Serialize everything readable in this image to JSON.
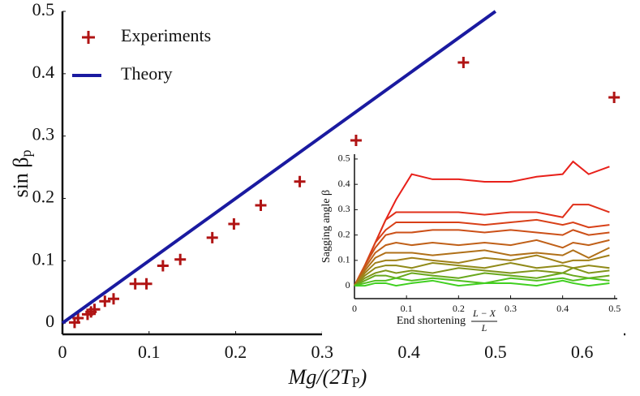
{
  "chart_data": [
    {
      "type": "scatter",
      "xlabel": [
        "Mg/(2T",
        "P",
        ")"
      ],
      "ylabel": [
        "sin β",
        "p"
      ],
      "xlim": [
        0,
        0.65
      ],
      "ylim": [
        -0.018,
        0.5
      ],
      "xticks": [
        0,
        0.1,
        0.2,
        0.3,
        0.4,
        0.5,
        0.6
      ],
      "yticks": [
        0,
        0.1,
        0.2,
        0.3,
        0.4,
        0.5
      ],
      "legend": "upper left",
      "series": [
        {
          "name": "Experiments",
          "type": "scatter",
          "color": "#b01414",
          "x": [
            0.014,
            0.018,
            0.029,
            0.033,
            0.037,
            0.049,
            0.059,
            0.084,
            0.097,
            0.116,
            0.136,
            0.173,
            0.198,
            0.229,
            0.274,
            0.339,
            0.463,
            0.637
          ],
          "values": [
            0.001,
            0.008,
            0.014,
            0.018,
            0.022,
            0.035,
            0.039,
            0.063,
            0.063,
            0.092,
            0.102,
            0.137,
            0.159,
            0.189,
            0.227,
            0.293,
            0.418,
            0.362
          ]
        },
        {
          "name": "Theory",
          "type": "line",
          "color": "#1a1aa0",
          "x": [
            0,
            0.5
          ],
          "values": [
            0,
            0.5
          ]
        }
      ]
    },
    {
      "type": "line",
      "xlabel": [
        "End shortening",
        "L − X",
        "L"
      ],
      "ylabel": "Sagging angle β",
      "xlim": [
        0,
        0.505
      ],
      "ylim": [
        -0.051,
        0.519
      ],
      "xticks": [
        0,
        0.1,
        0.2,
        0.3,
        0.4,
        0.5
      ],
      "yticks": [
        0,
        0.1,
        0.2,
        0.3,
        0.4,
        0.5
      ],
      "x": [
        0,
        0.02,
        0.04,
        0.06,
        0.08,
        0.11,
        0.15,
        0.2,
        0.25,
        0.3,
        0.35,
        0.4,
        0.42,
        0.45,
        0.49
      ],
      "series": [
        {
          "color": "#e8201a",
          "values": [
            0,
            0.08,
            0.17,
            0.26,
            0.34,
            0.44,
            0.42,
            0.42,
            0.41,
            0.41,
            0.43,
            0.44,
            0.49,
            0.44,
            0.47
          ]
        },
        {
          "color": "#e0301a",
          "values": [
            0,
            0.08,
            0.17,
            0.26,
            0.29,
            0.29,
            0.29,
            0.29,
            0.28,
            0.29,
            0.29,
            0.27,
            0.32,
            0.32,
            0.29
          ]
        },
        {
          "color": "#d84018",
          "values": [
            0,
            0.08,
            0.17,
            0.22,
            0.25,
            0.25,
            0.25,
            0.25,
            0.24,
            0.25,
            0.26,
            0.24,
            0.25,
            0.23,
            0.24
          ]
        },
        {
          "color": "#cc5018",
          "values": [
            0,
            0.08,
            0.15,
            0.2,
            0.21,
            0.21,
            0.22,
            0.22,
            0.21,
            0.22,
            0.21,
            0.2,
            0.22,
            0.2,
            0.21
          ]
        },
        {
          "color": "#c06018",
          "values": [
            0,
            0.07,
            0.13,
            0.16,
            0.17,
            0.16,
            0.17,
            0.16,
            0.17,
            0.16,
            0.18,
            0.15,
            0.17,
            0.16,
            0.18
          ]
        },
        {
          "color": "#b07018",
          "values": [
            0,
            0.06,
            0.11,
            0.13,
            0.13,
            0.13,
            0.12,
            0.13,
            0.14,
            0.12,
            0.13,
            0.12,
            0.14,
            0.11,
            0.15
          ]
        },
        {
          "color": "#a08018",
          "values": [
            0,
            0.05,
            0.09,
            0.1,
            0.1,
            0.11,
            0.1,
            0.09,
            0.11,
            0.1,
            0.12,
            0.09,
            0.1,
            0.1,
            0.12
          ]
        },
        {
          "color": "#908a18",
          "values": [
            0,
            0.04,
            0.07,
            0.08,
            0.08,
            0.07,
            0.09,
            0.08,
            0.07,
            0.09,
            0.07,
            0.08,
            0.07,
            0.08,
            0.07
          ]
        },
        {
          "color": "#80951a",
          "values": [
            0,
            0.03,
            0.05,
            0.06,
            0.05,
            0.06,
            0.05,
            0.07,
            0.06,
            0.05,
            0.06,
            0.05,
            0.07,
            0.05,
            0.06
          ]
        },
        {
          "color": "#68a81c",
          "values": [
            0,
            0.02,
            0.04,
            0.04,
            0.03,
            0.05,
            0.04,
            0.03,
            0.05,
            0.04,
            0.03,
            0.05,
            0.04,
            0.03,
            0.04
          ]
        },
        {
          "color": "#50c01e",
          "values": [
            0,
            0.01,
            0.02,
            0.02,
            0.03,
            0.02,
            0.03,
            0.02,
            0.01,
            0.03,
            0.02,
            0.03,
            0.02,
            0.03,
            0.02
          ]
        },
        {
          "color": "#40d020",
          "values": [
            0,
            0,
            0.01,
            0.01,
            0,
            0.01,
            0.02,
            0,
            0.01,
            0.01,
            0,
            0.02,
            0.01,
            0,
            0.01
          ]
        }
      ]
    }
  ]
}
